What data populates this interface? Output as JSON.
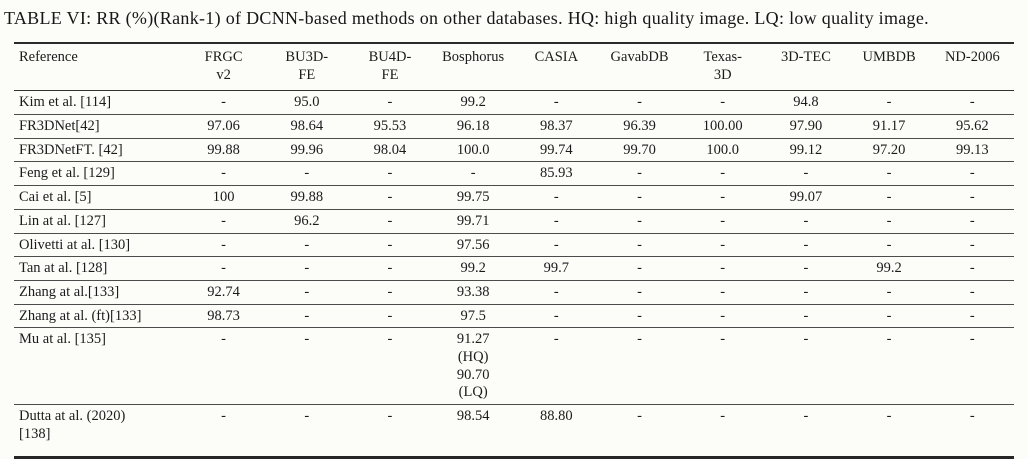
{
  "page": {
    "title": "TABLE VI: RR (%)(Rank-1) of DCNN-based methods on other databases. HQ: high quality image. LQ: low quality image."
  },
  "table": {
    "columns": [
      "Reference",
      "FRGC\nv2",
      "BU3D-\nFE",
      "BU4D-\nFE",
      "Bosphorus",
      "CASIA",
      "GavabDB",
      "Texas-\n3D",
      "3D-TEC",
      "UMBDB",
      "ND-2006"
    ],
    "rows": [
      {
        "reference": "Kim et al. [114]",
        "values": [
          "-",
          "95.0",
          "-",
          "99.2",
          "-",
          "-",
          "-",
          "94.8",
          "-",
          "-"
        ]
      },
      {
        "reference": "FR3DNet[42]",
        "values": [
          "97.06",
          "98.64",
          "95.53",
          "96.18",
          "98.37",
          "96.39",
          "100.00",
          "97.90",
          "91.17",
          "95.62"
        ]
      },
      {
        "reference": "FR3DNetFT. [42]",
        "values": [
          "99.88",
          "99.96",
          "98.04",
          "100.0",
          "99.74",
          "99.70",
          "100.0",
          "99.12",
          "97.20",
          "99.13"
        ]
      },
      {
        "reference": "Feng et al. [129]",
        "values": [
          "-",
          "-",
          "-",
          "-",
          "85.93",
          "-",
          "-",
          "-",
          "-",
          "-"
        ]
      },
      {
        "reference": "Cai et al. [5]",
        "values": [
          "100",
          "99.88",
          "-",
          "99.75",
          "-",
          "-",
          "-",
          "99.07",
          "-",
          "-"
        ]
      },
      {
        "reference": "Lin at al. [127]",
        "values": [
          "-",
          "96.2",
          "-",
          "99.71",
          "-",
          "-",
          "-",
          "-",
          "-",
          "-"
        ]
      },
      {
        "reference": "Olivetti at al. [130]",
        "values": [
          "-",
          "-",
          "-",
          "97.56",
          "-",
          "-",
          "-",
          "-",
          "-",
          "-"
        ]
      },
      {
        "reference": "Tan at al. [128]",
        "values": [
          "-",
          "-",
          "-",
          "99.2",
          "99.7",
          "-",
          "-",
          "-",
          "99.2",
          "-"
        ]
      },
      {
        "reference": "Zhang at al.[133]",
        "values": [
          "92.74",
          "-",
          "-",
          "93.38",
          "-",
          "-",
          "-",
          "-",
          "-",
          "-"
        ]
      },
      {
        "reference": "Zhang at al. (ft)[133]",
        "values": [
          "98.73",
          "-",
          "-",
          "97.5",
          "-",
          "-",
          "-",
          "-",
          "-",
          "-"
        ]
      },
      {
        "reference": "Mu at al. [135]",
        "values": [
          "-",
          "-",
          "-",
          "91.27\n(HQ)\n90.70\n(LQ)",
          "-",
          "-",
          "-",
          "-",
          "-",
          "-"
        ]
      },
      {
        "reference": "Dutta at al. (2020)\n[138]",
        "values": [
          "-",
          "-",
          "-",
          "98.54",
          "88.80",
          "-",
          "-",
          "-",
          "-",
          "-"
        ]
      }
    ]
  }
}
